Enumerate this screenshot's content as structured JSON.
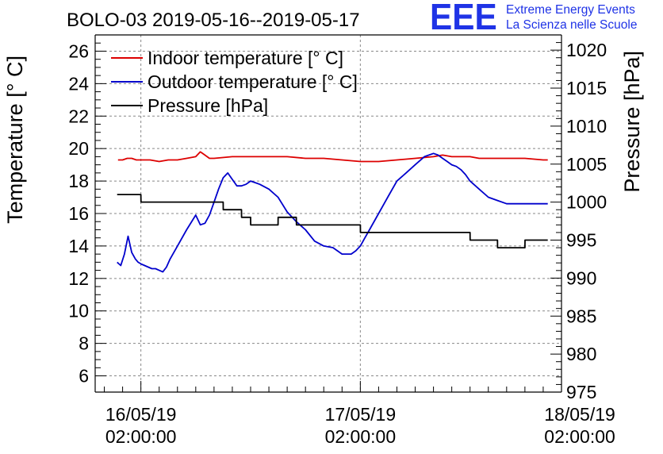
{
  "logo": {
    "letters": "EEE",
    "line1": "Extreme Energy Events",
    "line2": "La Scienza nelle Scuole"
  },
  "colors": {
    "indoor": "#dd0000",
    "outdoor": "#0000cc",
    "pressure": "#000000",
    "logo": "#1f33e6",
    "grid": "#888888"
  },
  "chart_data": {
    "type": "line",
    "title": "BOLO-03 2019-05-16--2019-05-17",
    "xlabel": "",
    "ylabel": "Temperature [° C]",
    "y2label": "Pressure [hPa]",
    "x_unit": "hours since 16/05/19 02:00:00",
    "xlim": [
      -5,
      46
    ],
    "ylim": [
      5,
      27
    ],
    "y2lim": [
      975,
      1022
    ],
    "grid": true,
    "legend_position": "top-left",
    "x_ticks": [
      {
        "x": 0,
        "line1": "16/05/19",
        "line2": "02:00:00"
      },
      {
        "x": 24,
        "line1": "17/05/19",
        "line2": "02:00:00"
      },
      {
        "x": 48,
        "line1": "18/05/19",
        "line2": "02:00:00"
      }
    ],
    "y_ticks": [
      6,
      8,
      10,
      12,
      14,
      16,
      18,
      20,
      22,
      24,
      26
    ],
    "y2_ticks": [
      975,
      980,
      985,
      990,
      995,
      1000,
      1005,
      1010,
      1015,
      1020
    ],
    "series": [
      {
        "name": "Indoor temperature [° C]",
        "axis": "left",
        "color": "#dd0000",
        "x": [
          -2.5,
          -2.0,
          -1.5,
          -1.0,
          -0.5,
          0,
          1,
          2,
          3,
          4,
          5,
          6,
          6.5,
          7,
          7.5,
          8,
          10,
          12,
          14,
          16,
          18,
          20,
          22,
          24,
          26,
          28,
          30,
          32,
          33,
          34,
          35,
          36,
          37,
          38,
          40,
          42,
          44,
          44.5
        ],
        "values": [
          19.3,
          19.3,
          19.4,
          19.4,
          19.3,
          19.3,
          19.3,
          19.2,
          19.3,
          19.3,
          19.4,
          19.5,
          19.8,
          19.6,
          19.4,
          19.4,
          19.5,
          19.5,
          19.5,
          19.5,
          19.4,
          19.4,
          19.3,
          19.2,
          19.2,
          19.3,
          19.4,
          19.5,
          19.6,
          19.5,
          19.5,
          19.5,
          19.4,
          19.4,
          19.4,
          19.4,
          19.3,
          19.3
        ]
      },
      {
        "name": "Outdoor temperature [° C]",
        "axis": "left",
        "color": "#0000cc",
        "x": [
          -2.6,
          -2.2,
          -1.8,
          -1.4,
          -1.0,
          -0.6,
          -0.3,
          0,
          0.4,
          0.8,
          1.2,
          1.6,
          2.0,
          2.4,
          2.8,
          3.2,
          4.0,
          5.0,
          6.0,
          6.5,
          7.0,
          7.5,
          8.0,
          8.5,
          9.0,
          9.5,
          10.0,
          10.5,
          11.0,
          11.5,
          12.0,
          12.5,
          13.0,
          14.0,
          15.0,
          16.0,
          17.0,
          18.0,
          19.0,
          20.0,
          21.0,
          22.0,
          22.5,
          23.0,
          23.5,
          24.0,
          24.5,
          25.0,
          26.0,
          27.0,
          28.0,
          29.0,
          30.0,
          31.0,
          31.5,
          32.0,
          32.5,
          33.0,
          33.5,
          34.0,
          34.5,
          35.0,
          35.5,
          36.0,
          37.0,
          38.0,
          39.0,
          40.0,
          41.0,
          42.0,
          43.0,
          43.5,
          44.0,
          44.5
        ],
        "values": [
          13.0,
          12.8,
          13.5,
          14.6,
          13.6,
          13.2,
          13.0,
          12.9,
          12.8,
          12.7,
          12.6,
          12.6,
          12.5,
          12.4,
          12.7,
          13.2,
          14.0,
          15.0,
          15.9,
          15.3,
          15.4,
          15.9,
          16.7,
          17.5,
          18.2,
          18.5,
          18.1,
          17.7,
          17.7,
          17.8,
          18.0,
          17.9,
          17.8,
          17.5,
          17.0,
          16.1,
          15.5,
          15.0,
          14.3,
          14.0,
          13.9,
          13.5,
          13.5,
          13.5,
          13.7,
          14.0,
          14.5,
          15.0,
          16.0,
          17.0,
          18.0,
          18.5,
          19.0,
          19.5,
          19.6,
          19.7,
          19.6,
          19.4,
          19.2,
          19.0,
          18.9,
          18.7,
          18.4,
          18.0,
          17.5,
          17.0,
          16.8,
          16.6,
          16.6,
          16.6,
          16.6,
          16.6,
          16.6,
          16.6
        ]
      },
      {
        "name": "Pressure [hPa]",
        "axis": "right",
        "color": "#000000",
        "x": [
          -2.6,
          0,
          0.01,
          9,
          9.01,
          11,
          11.01,
          12,
          12.01,
          15,
          15.01,
          17,
          17.01,
          24,
          24.01,
          36,
          36.01,
          39,
          39.01,
          42,
          42.01,
          44.5
        ],
        "values": [
          1001,
          1001,
          1000,
          1000,
          999,
          999,
          998,
          998,
          997,
          997,
          998,
          998,
          997,
          997,
          996,
          996,
          995,
          995,
          994,
          994,
          995,
          995
        ]
      }
    ]
  }
}
